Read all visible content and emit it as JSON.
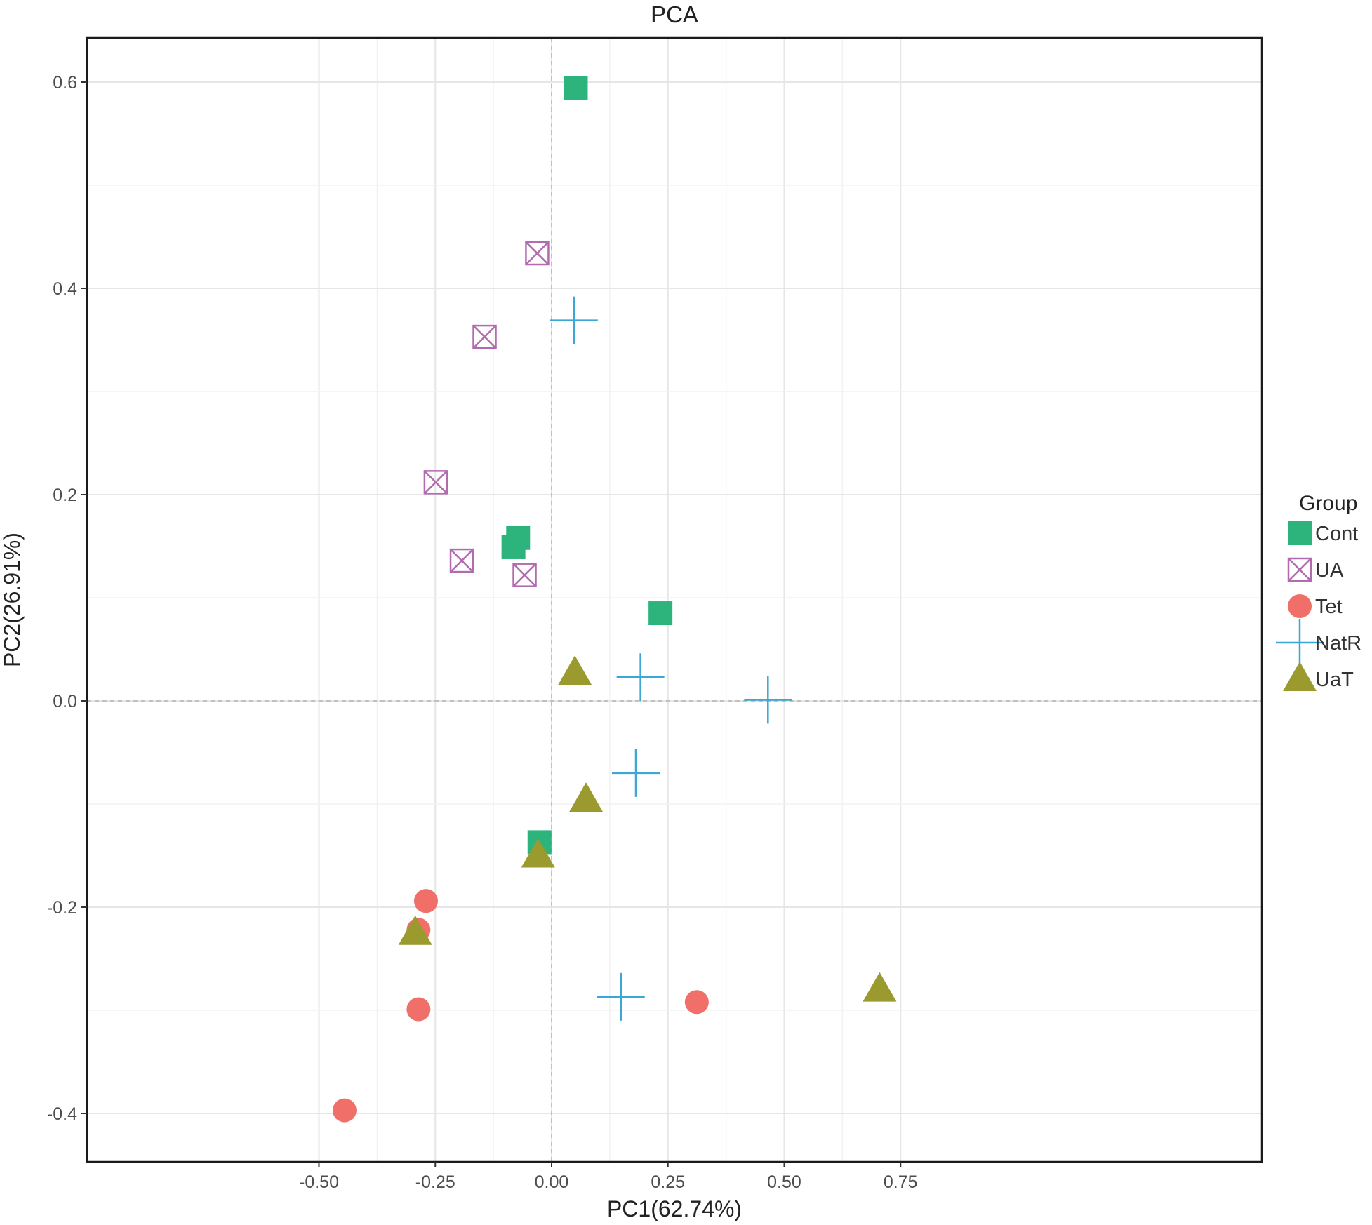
{
  "chart_data": {
    "type": "scatter",
    "title": "PCA",
    "xlabel": "PC1(62.74%)",
    "ylabel": "PC2(26.91%)",
    "xlim": [
      -0.5,
      0.76
    ],
    "ylim": [
      -0.44,
      0.645
    ],
    "x_ticks": [
      -0.5,
      -0.25,
      0.0,
      0.25,
      0.5,
      0.75
    ],
    "x_tick_labels": [
      "-0.50",
      "-0.25",
      "0.00",
      "0.25",
      "0.50",
      "0.75"
    ],
    "y_ticks": [
      -0.4,
      -0.2,
      0.0,
      0.2,
      0.4,
      0.6
    ],
    "y_tick_labels": [
      "-0.4",
      "-0.2",
      "0.0",
      "0.2",
      "0.4",
      "0.6"
    ],
    "grid": true,
    "reference_lines": {
      "x": 0,
      "y": 0
    },
    "legend": {
      "title": "Group",
      "position": "right"
    },
    "series": [
      {
        "name": "Cont",
        "shape": "square",
        "color": "#2db37c",
        "points": [
          [
            0.052,
            0.594
          ],
          [
            -0.072,
            0.158
          ],
          [
            -0.082,
            0.149
          ],
          [
            0.234,
            0.085
          ],
          [
            -0.026,
            -0.137
          ]
        ]
      },
      {
        "name": "UA",
        "shape": "square-cross",
        "color": "#b36bb0",
        "points": [
          [
            -0.031,
            0.434
          ],
          [
            -0.144,
            0.353
          ],
          [
            -0.249,
            0.212
          ],
          [
            -0.193,
            0.136
          ],
          [
            -0.058,
            0.122
          ]
        ]
      },
      {
        "name": "Tet",
        "shape": "circle",
        "color": "#f07069",
        "points": [
          [
            -0.27,
            -0.194
          ],
          [
            -0.286,
            -0.222
          ],
          [
            -0.286,
            -0.299
          ],
          [
            -0.445,
            -0.397
          ],
          [
            0.312,
            -0.292
          ]
        ]
      },
      {
        "name": "NatR",
        "shape": "plus",
        "color": "#3aa7d6",
        "points": [
          [
            0.048,
            0.369
          ],
          [
            0.191,
            0.023
          ],
          [
            0.465,
            0.001
          ],
          [
            0.181,
            -0.07
          ],
          [
            0.149,
            -0.287
          ]
        ]
      },
      {
        "name": "UaT",
        "shape": "triangle",
        "color": "#9a9a2e",
        "points": [
          [
            0.05,
            0.027
          ],
          [
            0.074,
            -0.096
          ],
          [
            -0.029,
            -0.15
          ],
          [
            -0.293,
            -0.225
          ],
          [
            0.705,
            -0.28
          ]
        ]
      }
    ]
  }
}
